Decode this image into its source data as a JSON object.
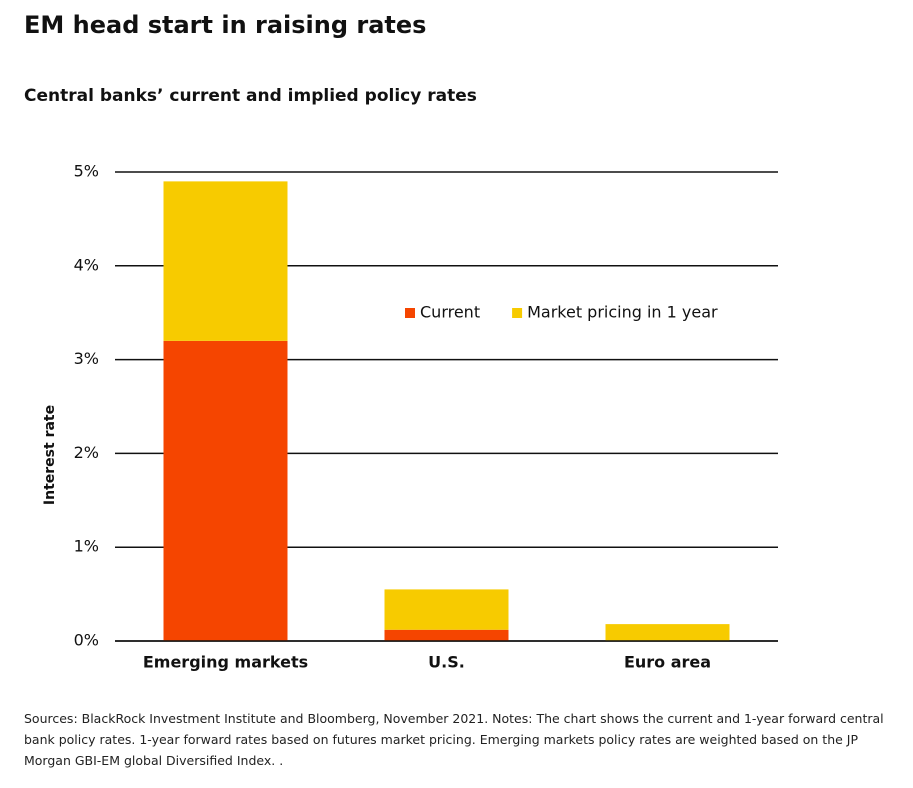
{
  "chart_data": {
    "type": "stacked_bar",
    "title": "EM head start in raising rates",
    "subtitle": "Central banks’ current and implied policy rates",
    "y_label": "Interest rate",
    "categories": [
      "Emerging markets",
      "U.S.",
      "Euro area"
    ],
    "series": [
      {
        "name": "Current",
        "color": "#f54500",
        "values": [
          3.2,
          0.12,
          0
        ]
      },
      {
        "name": "Market pricing in 1 year",
        "color": "#f7cb00",
        "values": [
          1.7,
          0.43,
          0.18
        ]
      }
    ],
    "ylim": [
      0,
      5
    ],
    "yticks": [
      {
        "value": 0,
        "label": "0%"
      },
      {
        "value": 1,
        "label": "1%"
      },
      {
        "value": 2,
        "label": "2%"
      },
      {
        "value": 3,
        "label": "3%"
      },
      {
        "value": 4,
        "label": "4%"
      },
      {
        "value": 5,
        "label": "5%"
      }
    ],
    "grid": true,
    "footnote": "Sources: BlackRock Investment Institute and Bloomberg, November 2021. Notes: The chart shows the current and 1-year forward central bank policy rates. 1-year forward rates based on futures market pricing. Emerging markets policy rates are weighted based on the JP Morgan GBI-EM global Diversified Index. ."
  }
}
